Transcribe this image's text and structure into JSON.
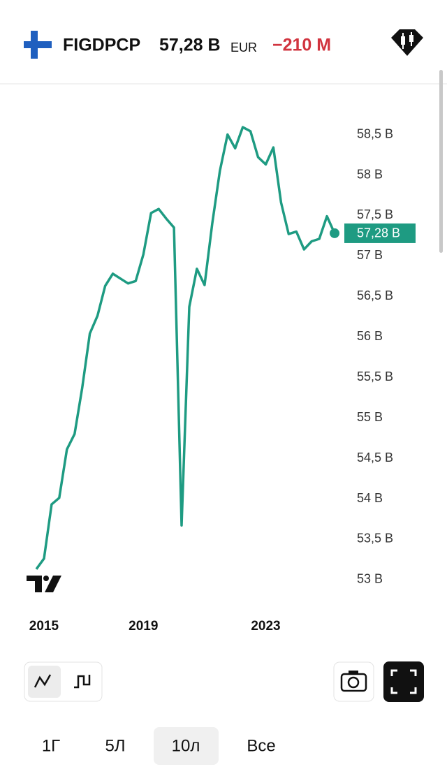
{
  "header": {
    "symbol": "FIGDPCP",
    "price": "57,28 B",
    "currency": "EUR",
    "change": "−210 M"
  },
  "chart_data": {
    "type": "line",
    "categories": [
      null,
      "2015",
      null,
      null,
      null,
      null,
      null,
      null,
      null,
      null,
      null,
      null,
      null,
      null,
      "2019",
      null,
      null,
      null,
      null,
      null,
      null,
      null,
      null,
      null,
      null,
      null,
      null,
      null,
      null,
      null,
      "2023",
      null,
      null,
      null,
      null,
      null,
      null,
      null,
      null,
      null
    ],
    "series": [
      {
        "color": "#1e9b82",
        "values": [
          53.13,
          53.26,
          53.93,
          54.01,
          54.61,
          54.8,
          55.37,
          56.04,
          56.26,
          56.63,
          56.78,
          56.72,
          56.66,
          56.69,
          57.02,
          57.53,
          57.58,
          57.46,
          57.35,
          53.67,
          56.37,
          56.84,
          56.64,
          57.4,
          58.05,
          58.5,
          58.33,
          58.59,
          58.54,
          58.22,
          58.13,
          58.34,
          57.66,
          57.27,
          57.3,
          57.08,
          57.18,
          57.21,
          57.49,
          57.28
        ]
      }
    ],
    "current_value": {
      "value": 57.28,
      "label": "57,28 B"
    },
    "ylim": [
      52.74,
      59.04
    ],
    "yticks": [
      {
        "value": 53,
        "label": "53 B"
      },
      {
        "value": 53.5,
        "label": "53,5 B"
      },
      {
        "value": 54,
        "label": "54 B"
      },
      {
        "value": 54.5,
        "label": "54,5 B"
      },
      {
        "value": 55,
        "label": "55 B"
      },
      {
        "value": 55.5,
        "label": "55,5 B"
      },
      {
        "value": 56,
        "label": "56 B"
      },
      {
        "value": 56.5,
        "label": "56,5 B"
      },
      {
        "value": 57,
        "label": "57 B"
      },
      {
        "value": 57.5,
        "label": "57,5 B"
      },
      {
        "value": 58,
        "label": "58 B"
      },
      {
        "value": 58.5,
        "label": "58,5 B"
      }
    ]
  },
  "ranges": [
    "1Г",
    "5Л",
    "10л",
    "Все"
  ]
}
